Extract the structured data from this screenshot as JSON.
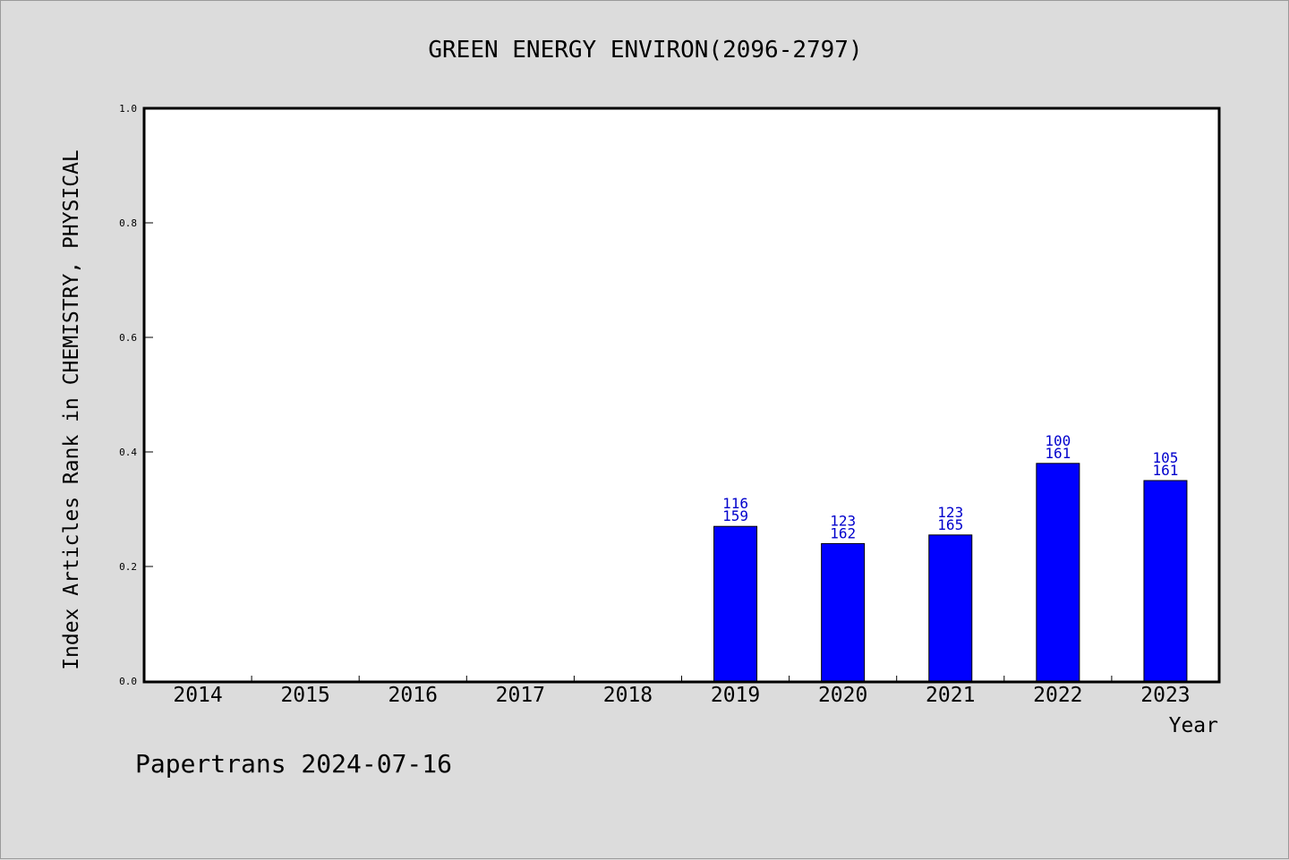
{
  "chart_data": {
    "type": "bar",
    "title": "GREEN ENERGY ENVIRON(2096-2797)",
    "xlabel": "Year",
    "ylabel": "Index Articles Rank in CHEMISTRY, PHYSICAL",
    "categories": [
      "2014",
      "2015",
      "2016",
      "2017",
      "2018",
      "2019",
      "2020",
      "2021",
      "2022",
      "2023"
    ],
    "values": [
      null,
      null,
      null,
      null,
      null,
      0.27,
      0.24,
      0.255,
      0.38,
      0.35
    ],
    "bar_labels": [
      null,
      null,
      null,
      null,
      null,
      {
        "rank": "116",
        "total": "159"
      },
      {
        "rank": "123",
        "total": "162"
      },
      {
        "rank": "123",
        "total": "165"
      },
      {
        "rank": "100",
        "total": "161"
      },
      {
        "rank": "105",
        "total": "161"
      }
    ],
    "ylim": [
      0,
      1.0
    ],
    "yticks": [
      "0.0",
      "0.2",
      "0.4",
      "0.6",
      "0.8",
      "1.0"
    ],
    "grid": false,
    "bar_color": "#0000ff",
    "label_color": "#0000cc",
    "background_color": "#dcdcdc",
    "plot_background_color": "#ffffff"
  },
  "footer": {
    "text": "Papertrans 2024-07-16"
  }
}
